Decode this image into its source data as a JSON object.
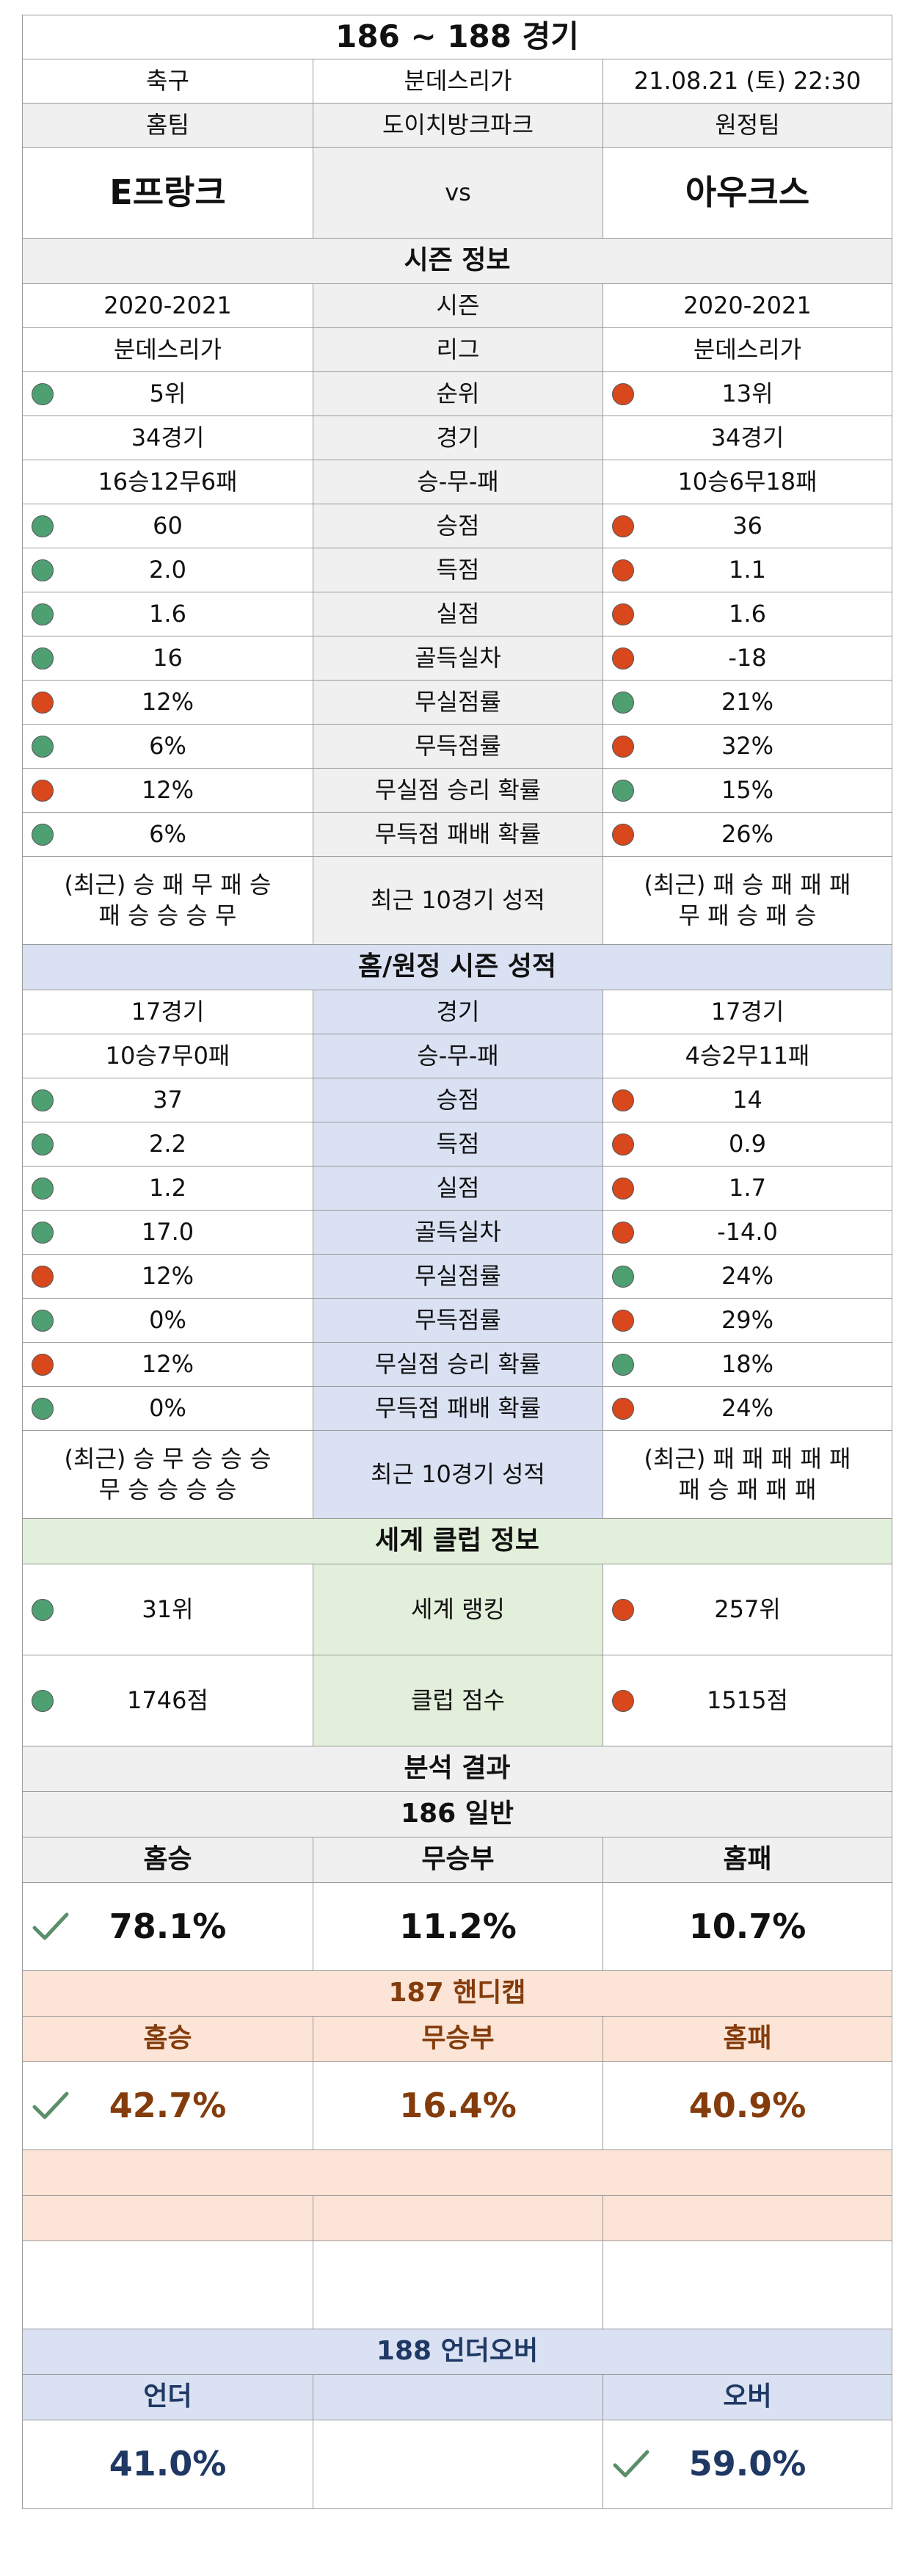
{
  "title": "186 ~ 188 경기",
  "match": {
    "sport": "축구",
    "league": "분데스리가",
    "datetime": "21.08.21 (토) 22:30",
    "home_label": "홈팀",
    "venue": "도이치방크파크",
    "away_label": "원정팀",
    "home_team": "E프랑크",
    "vs": "vs",
    "away_team": "아우크스"
  },
  "season": {
    "title": "시즌 정보",
    "rows": [
      {
        "home": "2020-2021",
        "label": "시즌",
        "away": "2020-2021"
      },
      {
        "home": "분데스리가",
        "label": "리그",
        "away": "분데스리가"
      },
      {
        "home": "5위",
        "label": "순위",
        "away": "13위",
        "home_dot": "green",
        "away_dot": "red"
      },
      {
        "home": "34경기",
        "label": "경기",
        "away": "34경기"
      },
      {
        "home": "16승12무6패",
        "label": "승-무-패",
        "away": "10승6무18패"
      },
      {
        "home": "60",
        "label": "승점",
        "away": "36",
        "home_dot": "green",
        "away_dot": "red"
      },
      {
        "home": "2.0",
        "label": "득점",
        "away": "1.1",
        "home_dot": "green",
        "away_dot": "red"
      },
      {
        "home": "1.6",
        "label": "실점",
        "away": "1.6",
        "home_dot": "green",
        "away_dot": "red"
      },
      {
        "home": "16",
        "label": "골득실차",
        "away": "-18",
        "home_dot": "green",
        "away_dot": "red"
      },
      {
        "home": "12%",
        "label": "무실점률",
        "away": "21%",
        "home_dot": "red",
        "away_dot": "green"
      },
      {
        "home": "6%",
        "label": "무득점률",
        "away": "32%",
        "home_dot": "green",
        "away_dot": "red"
      },
      {
        "home": "12%",
        "label": "무실점 승리 확률",
        "away": "15%",
        "home_dot": "red",
        "away_dot": "green"
      },
      {
        "home": "6%",
        "label": "무득점 패배 확률",
        "away": "26%",
        "home_dot": "green",
        "away_dot": "red"
      }
    ],
    "recent": {
      "home_1": "(최근) 승 패 무 패 승",
      "home_2": "패 승 승 승 무",
      "label": "최근 10경기 성적",
      "away_1": "(최근) 패 승 패 패 패",
      "away_2": "무 패 승 패 승"
    }
  },
  "home_away": {
    "title": "홈/원정 시즌 성적",
    "rows": [
      {
        "home": "17경기",
        "label": "경기",
        "away": "17경기"
      },
      {
        "home": "10승7무0패",
        "label": "승-무-패",
        "away": "4승2무11패"
      },
      {
        "home": "37",
        "label": "승점",
        "away": "14",
        "home_dot": "green",
        "away_dot": "red"
      },
      {
        "home": "2.2",
        "label": "득점",
        "away": "0.9",
        "home_dot": "green",
        "away_dot": "red"
      },
      {
        "home": "1.2",
        "label": "실점",
        "away": "1.7",
        "home_dot": "green",
        "away_dot": "red"
      },
      {
        "home": "17.0",
        "label": "골득실차",
        "away": "-14.0",
        "home_dot": "green",
        "away_dot": "red"
      },
      {
        "home": "12%",
        "label": "무실점률",
        "away": "24%",
        "home_dot": "red",
        "away_dot": "green"
      },
      {
        "home": "0%",
        "label": "무득점률",
        "away": "29%",
        "home_dot": "green",
        "away_dot": "red"
      },
      {
        "home": "12%",
        "label": "무실점 승리 확률",
        "away": "18%",
        "home_dot": "red",
        "away_dot": "green"
      },
      {
        "home": "0%",
        "label": "무득점 패배 확률",
        "away": "24%",
        "home_dot": "green",
        "away_dot": "red"
      }
    ],
    "recent": {
      "home_1": "(최근) 승 무 승 승 승",
      "home_2": "무 승 승 승 승",
      "label": "최근 10경기 성적",
      "away_1": "(최근) 패 패 패 패 패",
      "away_2": "패 승 패 패 패"
    }
  },
  "world": {
    "title": "세계 클럽 정보",
    "rows": [
      {
        "home": "31위",
        "label": "세계 랭킹",
        "away": "257위",
        "home_dot": "green",
        "away_dot": "red"
      },
      {
        "home": "1746점",
        "label": "클럽 점수",
        "away": "1515점",
        "home_dot": "green",
        "away_dot": "red"
      }
    ]
  },
  "analysis": {
    "title": "분석 결과",
    "general": {
      "title": "186 일반",
      "h1": "홈승",
      "h2": "무승부",
      "h3": "홈패",
      "v1": "78.1%",
      "v2": "11.2%",
      "v3": "10.7%",
      "pick": "home"
    },
    "handicap": {
      "title": "187 핸디캡",
      "h1": "홈승",
      "h2": "무승부",
      "h3": "홈패",
      "v1": "42.7%",
      "v2": "16.4%",
      "v3": "40.9%",
      "pick": "home"
    },
    "underover": {
      "title": "188 언더오버",
      "h1": "언더",
      "h2": "",
      "h3": "오버",
      "v1": "41.0%",
      "v2": "",
      "v3": "59.0%",
      "pick": "over"
    }
  },
  "colors": {
    "green_dot": "#4e9f72",
    "red_dot": "#d9471c",
    "check": "#5a8f6a",
    "handicap_text": "#843c0c",
    "underover_text": "#1f3864"
  }
}
